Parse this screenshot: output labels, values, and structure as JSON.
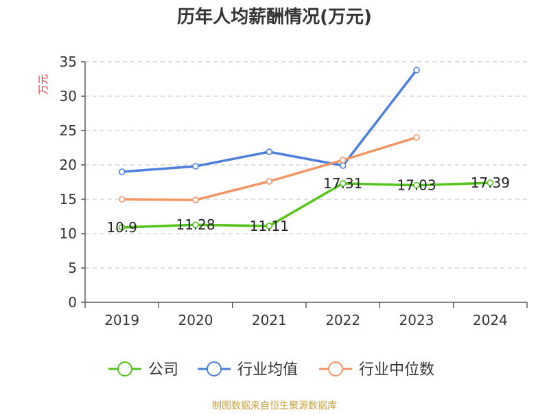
{
  "chart_data": {
    "type": "line",
    "title": "历年人均薪酬情况(万元)",
    "ylabel": "万元",
    "xlabel": "",
    "categories": [
      "2019",
      "2020",
      "2021",
      "2022",
      "2023",
      "2024"
    ],
    "ylim": [
      0,
      35
    ],
    "yticks": [
      0,
      5,
      10,
      15,
      20,
      25,
      30,
      35
    ],
    "grid": true,
    "legend_position": "bottom",
    "series": [
      {
        "name": "公司",
        "color": "#52c41a",
        "values": [
          10.9,
          11.28,
          11.11,
          17.31,
          17.03,
          17.39
        ],
        "labels": [
          "10.9",
          "11.28",
          "11.11",
          "17.31",
          "17.03",
          "17.39"
        ]
      },
      {
        "name": "行业均值",
        "color": "#4a7fdc",
        "values": [
          19.0,
          19.8,
          21.9,
          19.9,
          33.8,
          null
        ]
      },
      {
        "name": "行业中位数",
        "color": "#f59462",
        "values": [
          15.0,
          14.9,
          17.6,
          20.7,
          24.0,
          null
        ]
      }
    ],
    "source": "制图数据来自恒生聚源数据库"
  },
  "colors": {
    "title": "#333333",
    "ylabel": "#e03030",
    "axis": "#333333",
    "grid": "#cccccc",
    "source": "#c8a040"
  }
}
